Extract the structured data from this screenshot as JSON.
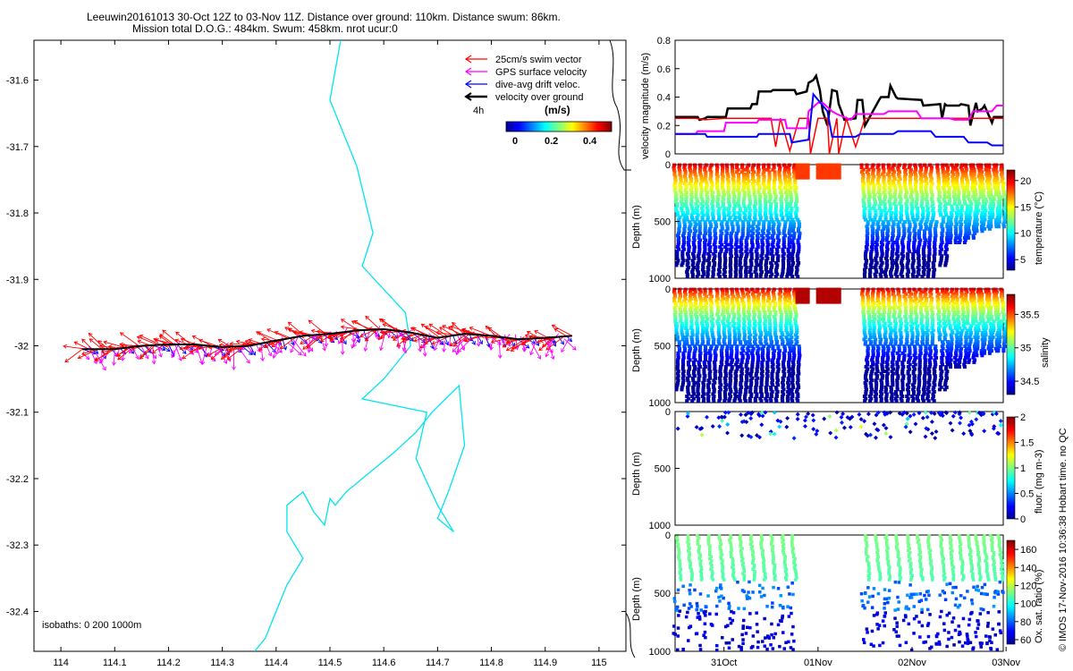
{
  "header": {
    "line1": "Leeuwin20161013 30-Oct 12Z to 03-Nov 11Z. Distance over ground: 110km. Distance swum: 86km.",
    "line2": "Mission total D.O.G.: 484km. Swum: 458km. nrot ucur:0"
  },
  "side_note": "© IMOS 17-Nov-2016 10:36:38 Hobart time. no QC",
  "colors": {
    "swim": "#ff0000",
    "gps": "#ff00ff",
    "drift": "#0000ff",
    "dog": "#000000",
    "isobath": "#00e5ee"
  },
  "chart_data": [
    {
      "id": "map",
      "type": "scatter",
      "xlim": [
        113.95,
        115.05
      ],
      "ylim": [
        -32.46,
        -31.54
      ],
      "x_ticks": [
        "114",
        "114.1",
        "114.2",
        "114.3",
        "114.4",
        "114.5",
        "114.6",
        "114.7",
        "114.8",
        "114.9",
        "115"
      ],
      "y_ticks": [
        "-31.6",
        "-31.7",
        "-31.8",
        "-31.9",
        "-32",
        "-32.1",
        "-32.2",
        "-32.3",
        "-32.4"
      ],
      "legend": {
        "placement": "top-right",
        "entries": [
          "25cm/s swim vector",
          "GPS surface velocity",
          "dive-avg drift veloc.",
          "velocity over ground"
        ],
        "time_label": "4h"
      },
      "colorbar": {
        "title": "(m/s)",
        "ticks": [
          "0",
          "0.2",
          "0.4"
        ]
      },
      "isobath_note": "isobaths: 0   200  1000m",
      "track": {
        "lon": [
          114.04,
          114.1,
          114.15,
          114.2,
          114.25,
          114.3,
          114.35,
          114.4,
          114.45,
          114.5,
          114.55,
          114.6,
          114.65,
          114.7,
          114.75,
          114.8,
          114.85,
          114.9,
          114.95
        ],
        "lat": [
          -32.005,
          -32.005,
          -32.0,
          -31.998,
          -31.998,
          -32.002,
          -32.0,
          -31.992,
          -31.985,
          -31.982,
          -31.977,
          -31.975,
          -31.98,
          -31.988,
          -31.982,
          -31.985,
          -31.99,
          -31.988,
          -31.985
        ]
      },
      "isobath_contour": {
        "lon": [
          114.52,
          114.5,
          114.55,
          114.58,
          114.56,
          114.64,
          114.65,
          114.6,
          114.56,
          114.68,
          114.66,
          114.7,
          114.73,
          114.7,
          114.72,
          114.75,
          114.74,
          114.69,
          114.66,
          114.62,
          114.56,
          114.53,
          114.51,
          114.5,
          114.49,
          114.47,
          114.45,
          114.42,
          114.42,
          114.45,
          114.42,
          114.41,
          114.4,
          114.39,
          114.38,
          114.37,
          114.36
        ],
        "lat": [
          -31.54,
          -31.63,
          -31.73,
          -31.83,
          -31.88,
          -31.95,
          -32.0,
          -32.05,
          -32.08,
          -32.1,
          -32.17,
          -32.24,
          -32.28,
          -32.26,
          -32.22,
          -32.15,
          -32.06,
          -32.1,
          -32.13,
          -32.16,
          -32.2,
          -32.22,
          -32.24,
          -32.23,
          -32.27,
          -32.25,
          -32.22,
          -32.24,
          -32.28,
          -32.32,
          -32.36,
          -32.38,
          -32.4,
          -32.42,
          -32.44,
          -32.45,
          -32.46
        ]
      }
    },
    {
      "id": "velocity",
      "type": "line",
      "ylabel": "velocity magnitude (m/s)",
      "ylim": [
        0,
        0.8
      ],
      "y_ticks": [
        "0",
        "0.2",
        "0.4",
        "0.6",
        "0.8"
      ],
      "x_days": [
        29.98,
        33.47
      ],
      "series": [
        {
          "name": "velocity over ground",
          "color": "#000000",
          "width": 2.5,
          "x": [
            29.98,
            30.22,
            30.24,
            30.3,
            30.32,
            30.52,
            30.54,
            30.78,
            30.8,
            30.85,
            30.87,
            31.0,
            31.02,
            31.25,
            31.27,
            31.38,
            31.4,
            31.45,
            31.48,
            31.52,
            31.55,
            31.6,
            31.65,
            31.7,
            31.72,
            31.75,
            31.78,
            31.9,
            31.92,
            31.97,
            32.0,
            32.15,
            32.17,
            32.25,
            32.27,
            32.33,
            32.35,
            32.6,
            32.62,
            32.8,
            32.82,
            32.85,
            32.87,
            33.0,
            33.02,
            33.1,
            33.12,
            33.18,
            33.2,
            33.25,
            33.27,
            33.35,
            33.37,
            33.47
          ],
          "y": [
            0.26,
            0.26,
            0.24,
            0.25,
            0.26,
            0.26,
            0.32,
            0.32,
            0.35,
            0.35,
            0.44,
            0.44,
            0.45,
            0.45,
            0.42,
            0.44,
            0.5,
            0.52,
            0.55,
            0.45,
            0.3,
            0.2,
            0.45,
            0.44,
            0.35,
            0.3,
            0.24,
            0.25,
            0.38,
            0.38,
            0.2,
            0.38,
            0.4,
            0.4,
            0.48,
            0.4,
            0.39,
            0.38,
            0.34,
            0.35,
            0.25,
            0.35,
            0.34,
            0.34,
            0.35,
            0.34,
            0.2,
            0.36,
            0.3,
            0.32,
            0.34,
            0.22,
            0.26,
            0.26
          ]
        },
        {
          "name": "25cm/s swim vector",
          "color": "#ff0000",
          "width": 1.5,
          "x": [
            29.98,
            30.1,
            30.2,
            30.3,
            30.5,
            30.7,
            30.9,
            31.0,
            31.05,
            31.1,
            31.2,
            31.3,
            31.4,
            31.42,
            31.5,
            31.6,
            31.62,
            31.7,
            31.72,
            31.8,
            31.9,
            32.0,
            32.2,
            32.4,
            32.6,
            32.8,
            33.0,
            33.2,
            33.3,
            33.47
          ],
          "y": [
            0.25,
            0.25,
            0.25,
            0.24,
            0.25,
            0.25,
            0.25,
            0.25,
            0.05,
            0.25,
            0.02,
            0.25,
            0.25,
            0.0,
            0.25,
            0.25,
            0.0,
            0.25,
            0.0,
            0.25,
            0.05,
            0.25,
            0.25,
            0.25,
            0.25,
            0.25,
            0.25,
            0.25,
            0.25,
            0.25
          ]
        },
        {
          "name": "GPS surface velocity",
          "color": "#ff00ff",
          "width": 2,
          "x": [
            29.98,
            30.2,
            30.22,
            30.5,
            30.52,
            30.85,
            30.87,
            31.15,
            31.17,
            31.38,
            31.4,
            31.5,
            31.55,
            31.65,
            31.7,
            31.85,
            31.9,
            32.2,
            32.25,
            32.55,
            32.6,
            32.9,
            32.95,
            33.1,
            33.15,
            33.35,
            33.4,
            33.47
          ],
          "y": [
            0.14,
            0.14,
            0.16,
            0.16,
            0.22,
            0.22,
            0.24,
            0.24,
            0.18,
            0.18,
            0.3,
            0.36,
            0.36,
            0.3,
            0.28,
            0.24,
            0.28,
            0.28,
            0.3,
            0.3,
            0.25,
            0.25,
            0.24,
            0.24,
            0.3,
            0.3,
            0.34,
            0.34
          ]
        },
        {
          "name": "dive-avg drift veloc.",
          "color": "#0000ff",
          "width": 2,
          "x": [
            29.98,
            30.3,
            30.32,
            30.85,
            30.87,
            31.2,
            31.22,
            31.4,
            31.45,
            31.6,
            31.65,
            31.9,
            31.95,
            32.3,
            32.35,
            32.7,
            32.75,
            33.05,
            33.1,
            33.3,
            33.35,
            33.47
          ],
          "y": [
            0.14,
            0.14,
            0.12,
            0.12,
            0.14,
            0.14,
            0.08,
            0.1,
            0.42,
            0.3,
            0.12,
            0.12,
            0.14,
            0.14,
            0.16,
            0.16,
            0.12,
            0.12,
            0.08,
            0.08,
            0.06,
            0.06
          ]
        }
      ]
    },
    {
      "id": "temperature",
      "type": "scatter",
      "ylabel": "Depth (m)",
      "ylim": [
        1000,
        0
      ],
      "y_ticks": [
        "0",
        "500",
        "1000"
      ],
      "colorbar": {
        "label": "temperature (°C)",
        "ticks": [
          "5",
          "10",
          "15",
          "20"
        ],
        "range": [
          3,
          22
        ]
      },
      "surface_value": 21,
      "deep_value": 4,
      "profiles_day": [
        30.0,
        30.11,
        30.22,
        30.33,
        30.45,
        30.56,
        30.67,
        30.78,
        30.89,
        31.0,
        31.12,
        31.22,
        32.0,
        32.11,
        32.22,
        32.33,
        32.45,
        32.56,
        32.67,
        32.8,
        32.9,
        33.0,
        33.1,
        33.18,
        33.26,
        33.34,
        33.42
      ],
      "profiles_max_depth": [
        900,
        1000,
        1000,
        1000,
        1000,
        1000,
        1000,
        1000,
        1000,
        1000,
        1000,
        1000,
        1000,
        1000,
        1000,
        1000,
        1000,
        1000,
        1000,
        900,
        700,
        700,
        650,
        600,
        580,
        560,
        550
      ],
      "surface_blocks": [
        [
          31.26,
          31.38
        ],
        [
          31.48,
          31.73
        ]
      ]
    },
    {
      "id": "salinity",
      "type": "scatter",
      "ylabel": "Depth (m)",
      "ylim": [
        1000,
        0
      ],
      "y_ticks": [
        "0",
        "500",
        "1000"
      ],
      "colorbar": {
        "label": "salinity",
        "ticks": [
          "34.5",
          "35",
          "35.5"
        ],
        "range": [
          34.3,
          35.8
        ]
      },
      "surface_value": 35.7,
      "deep_value": 34.4,
      "surface_blocks": [
        [
          31.26,
          31.38
        ],
        [
          31.48,
          31.73
        ]
      ]
    },
    {
      "id": "fluorescence",
      "type": "scatter",
      "ylabel": "Depth (m)",
      "ylim": [
        1000,
        0
      ],
      "y_ticks": [
        "0",
        "500",
        "1000"
      ],
      "colorbar": {
        "label": "fluor. (mg m-3)",
        "ticks": [
          "0",
          "0.5",
          "1",
          "1.5",
          "2"
        ],
        "range": [
          0,
          2
        ]
      }
    },
    {
      "id": "oxygen",
      "type": "scatter",
      "ylabel": "Depth (m)",
      "ylim": [
        1000,
        0
      ],
      "y_ticks": [
        "0",
        "500",
        "1000"
      ],
      "x_ticks": [
        "31Oct",
        "01Nov",
        "02Nov",
        "03Nov"
      ],
      "x_tick_days": [
        30.5,
        31.5,
        32.5,
        33.5
      ],
      "colorbar": {
        "label": "Ox. sat. ratio (%)",
        "ticks": [
          "60",
          "80",
          "100",
          "120",
          "140",
          "160"
        ],
        "range": [
          55,
          170
        ]
      }
    }
  ]
}
